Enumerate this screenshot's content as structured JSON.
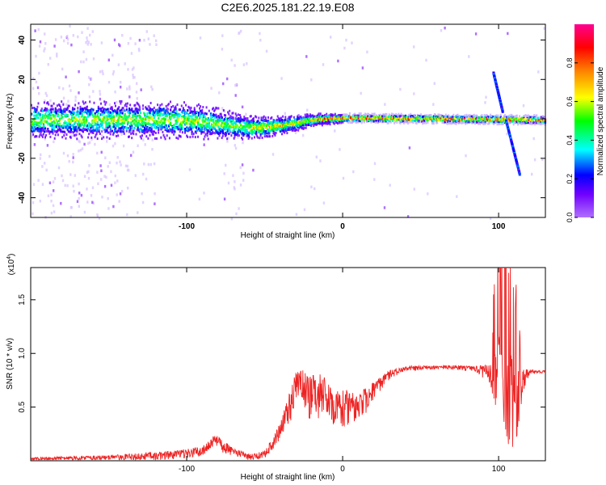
{
  "title": "C2E6.2025.181.22.19.E08",
  "chart_data": [
    {
      "type": "heatmap",
      "xlabel": "Height of straight line (km)",
      "ylabel": "Frequency (Hz)",
      "xlim": [
        -200,
        130
      ],
      "ylim": [
        -50,
        48
      ],
      "xticks": [
        -100,
        0,
        100
      ],
      "yticks": [
        -40,
        -20,
        0,
        20,
        40
      ],
      "grid": false,
      "colorbar": {
        "label": "Normalized spectral amplitude",
        "range": [
          0,
          1
        ],
        "ticks": [
          0.0,
          0.2,
          0.4,
          0.6,
          0.8
        ],
        "colormap": [
          "#a050ff",
          "#0000ff",
          "#00ffff",
          "#00ff00",
          "#ffff00",
          "#ff8000",
          "#ff0000",
          "#ff0090"
        ]
      },
      "features": {
        "main_band_center_hz": [
          [
            -200,
            0
          ],
          [
            -100,
            0
          ],
          [
            -60,
            -4
          ],
          [
            -40,
            -3
          ],
          [
            -20,
            0
          ],
          [
            0,
            1
          ],
          [
            130,
            0
          ]
        ],
        "main_band_halfwidth_hz": [
          [
            -200,
            6
          ],
          [
            -100,
            6
          ],
          [
            -60,
            4
          ],
          [
            -20,
            2
          ],
          [
            0,
            1.5
          ],
          [
            130,
            1.5
          ]
        ],
        "chirp_up": [
          [
            96,
            24
          ],
          [
            102,
            4
          ]
        ],
        "chirp_down": [
          [
            104,
            0
          ],
          [
            113,
            -28
          ]
        ]
      }
    },
    {
      "type": "line",
      "xlabel": "Height of straight line (km)",
      "ylabel": "SNR (10 * v/v)",
      "y_scale_label": "(x10",
      "y_scale_exp": "4",
      "y_scale_close": ")",
      "xlim": [
        -200,
        130
      ],
      "ylim": [
        0,
        1.8
      ],
      "xticks": [
        -100,
        0,
        100
      ],
      "yticks": [
        0.5,
        1.0,
        1.5
      ],
      "yticklabels": [
        "0.5",
        "1.0",
        "1.5"
      ],
      "series": [
        {
          "color": "#ee2222",
          "envelope": [
            [
              -200,
              0.03,
              0.03
            ],
            [
              -180,
              0.04,
              0.04
            ],
            [
              -150,
              0.05,
              0.05
            ],
            [
              -130,
              0.07,
              0.07
            ],
            [
              -110,
              0.09,
              0.08
            ],
            [
              -100,
              0.11,
              0.09
            ],
            [
              -90,
              0.13,
              0.1
            ],
            [
              -82,
              0.25,
              0.12
            ],
            [
              -78,
              0.2,
              0.12
            ],
            [
              -70,
              0.12,
              0.08
            ],
            [
              -60,
              0.06,
              0.06
            ],
            [
              -50,
              0.09,
              0.07
            ],
            [
              -40,
              0.35,
              0.16
            ],
            [
              -32,
              0.75,
              0.35
            ],
            [
              -28,
              0.9,
              0.4
            ],
            [
              -22,
              0.78,
              0.42
            ],
            [
              -15,
              0.82,
              0.45
            ],
            [
              -10,
              0.76,
              0.4
            ],
            [
              -5,
              0.68,
              0.35
            ],
            [
              0,
              0.66,
              0.35
            ],
            [
              8,
              0.66,
              0.3
            ],
            [
              15,
              0.68,
              0.25
            ],
            [
              22,
              0.76,
              0.15
            ],
            [
              30,
              0.84,
              0.08
            ],
            [
              40,
              0.88,
              0.05
            ],
            [
              55,
              0.89,
              0.04
            ],
            [
              70,
              0.89,
              0.04
            ],
            [
              85,
              0.88,
              0.05
            ],
            [
              95,
              0.9,
              0.2
            ],
            [
              100,
              1.2,
              0.9
            ],
            [
              104,
              1.4,
              1.3
            ],
            [
              108,
              1.0,
              0.9
            ],
            [
              112,
              0.9,
              0.7
            ],
            [
              116,
              0.86,
              0.2
            ],
            [
              120,
              0.85,
              0.04
            ],
            [
              130,
              0.84,
              0.03
            ]
          ]
        }
      ]
    }
  ]
}
